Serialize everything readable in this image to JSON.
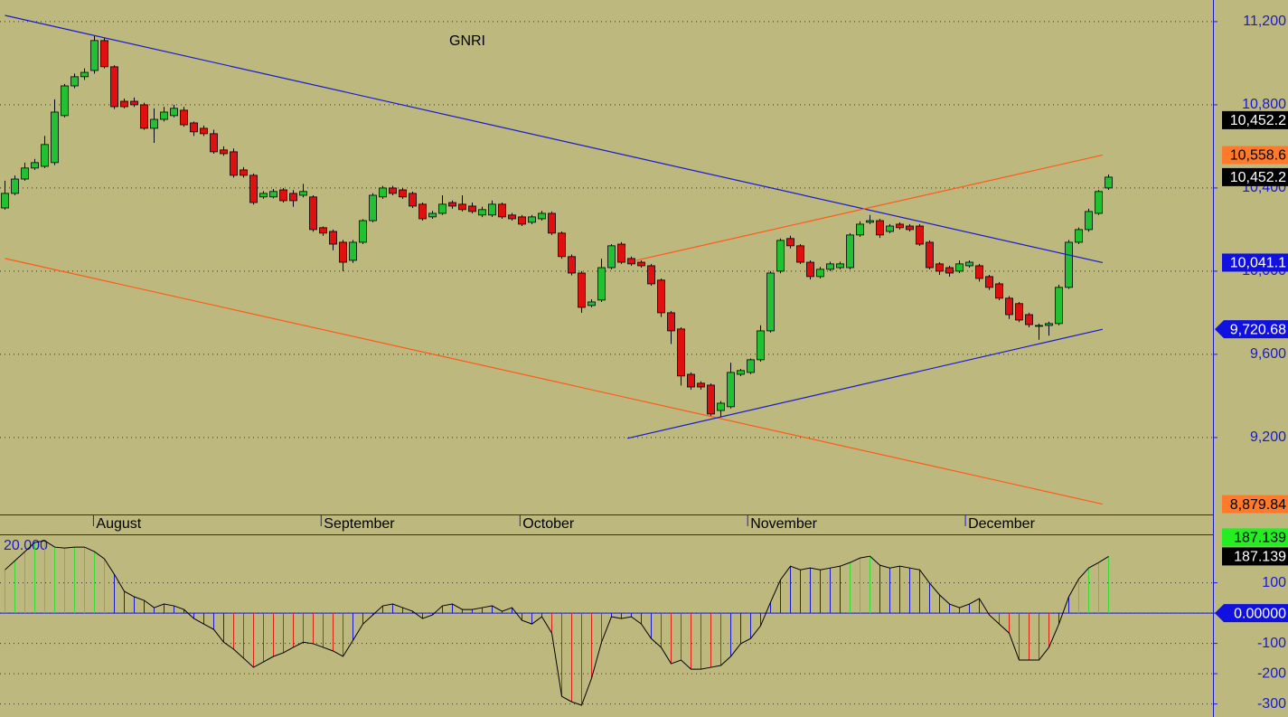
{
  "chart_data": [
    {
      "type": "candlestick",
      "title": "GNRI",
      "up_color": "#22c033",
      "down_color": "#e01010",
      "ohlc": [
        [
          10304,
          10435,
          10296,
          10374
        ],
        [
          10374,
          10460,
          10365,
          10443
        ],
        [
          10443,
          10522,
          10435,
          10496
        ],
        [
          10496,
          10540,
          10487,
          10522
        ],
        [
          10504,
          10650,
          10496,
          10609
        ],
        [
          10522,
          10826,
          10510,
          10765
        ],
        [
          10748,
          10900,
          10740,
          10891
        ],
        [
          10891,
          10950,
          10880,
          10935
        ],
        [
          10935,
          10975,
          10920,
          10956
        ],
        [
          10965,
          11130,
          10950,
          11109
        ],
        [
          11109,
          11120,
          10975,
          10983
        ],
        [
          10983,
          10990,
          10780,
          10791
        ],
        [
          10817,
          10830,
          10783,
          10791
        ],
        [
          10817,
          10835,
          10790,
          10800
        ],
        [
          10800,
          10810,
          10680,
          10687
        ],
        [
          10687,
          10783,
          10617,
          10730
        ],
        [
          10730,
          10790,
          10720,
          10765
        ],
        [
          10748,
          10800,
          10740,
          10783
        ],
        [
          10774,
          10790,
          10695,
          10704
        ],
        [
          10713,
          10720,
          10650,
          10670
        ],
        [
          10687,
          10700,
          10650,
          10661
        ],
        [
          10661,
          10680,
          10565,
          10574
        ],
        [
          10583,
          10600,
          10555,
          10565
        ],
        [
          10574,
          10590,
          10450,
          10461
        ],
        [
          10487,
          10500,
          10450,
          10461
        ],
        [
          10461,
          10470,
          10320,
          10330
        ],
        [
          10357,
          10385,
          10348,
          10374
        ],
        [
          10357,
          10395,
          10350,
          10383
        ],
        [
          10391,
          10400,
          10330,
          10339
        ],
        [
          10374,
          10390,
          10310,
          10339
        ],
        [
          10365,
          10420,
          10355,
          10383
        ],
        [
          10357,
          10365,
          10190,
          10200
        ],
        [
          10209,
          10215,
          10170,
          10183
        ],
        [
          10191,
          10200,
          10100,
          10130
        ],
        [
          10139,
          10150,
          10000,
          10043
        ],
        [
          10052,
          10150,
          10040,
          10139
        ],
        [
          10139,
          10250,
          10130,
          10243
        ],
        [
          10243,
          10375,
          10235,
          10365
        ],
        [
          10357,
          10410,
          10348,
          10400
        ],
        [
          10400,
          10410,
          10365,
          10374
        ],
        [
          10391,
          10400,
          10348,
          10357
        ],
        [
          10374,
          10383,
          10304,
          10313
        ],
        [
          10322,
          10330,
          10243,
          10252
        ],
        [
          10261,
          10290,
          10252,
          10278
        ],
        [
          10278,
          10365,
          10270,
          10322
        ],
        [
          10330,
          10340,
          10300,
          10313
        ],
        [
          10322,
          10365,
          10287,
          10296
        ],
        [
          10313,
          10330,
          10278,
          10287
        ],
        [
          10270,
          10310,
          10260,
          10296
        ],
        [
          10270,
          10340,
          10261,
          10322
        ],
        [
          10322,
          10330,
          10252,
          10261
        ],
        [
          10270,
          10280,
          10243,
          10252
        ],
        [
          10261,
          10270,
          10217,
          10226
        ],
        [
          10235,
          10270,
          10226,
          10261
        ],
        [
          10252,
          10290,
          10243,
          10278
        ],
        [
          10278,
          10287,
          10174,
          10183
        ],
        [
          10183,
          10191,
          10060,
          10070
        ],
        [
          10070,
          10080,
          9980,
          9991
        ],
        [
          9991,
          10000,
          9800,
          9826
        ],
        [
          9835,
          9865,
          9826,
          9852
        ],
        [
          9861,
          10060,
          9852,
          10017
        ],
        [
          10017,
          10130,
          10009,
          10122
        ],
        [
          10130,
          10140,
          10035,
          10043
        ],
        [
          10061,
          10070,
          10026,
          10035
        ],
        [
          10043,
          10052,
          10017,
          10026
        ],
        [
          10026,
          10035,
          9930,
          9939
        ],
        [
          9957,
          9965,
          9780,
          9800
        ],
        [
          9800,
          9809,
          9650,
          9713
        ],
        [
          9722,
          9730,
          9450,
          9496
        ],
        [
          9504,
          9513,
          9430,
          9443
        ],
        [
          9461,
          9470,
          9430,
          9443
        ],
        [
          9452,
          9460,
          9300,
          9313
        ],
        [
          9330,
          9375,
          9300,
          9365
        ],
        [
          9348,
          9560,
          9340,
          9513
        ],
        [
          9504,
          9530,
          9495,
          9522
        ],
        [
          9513,
          9580,
          9505,
          9574
        ],
        [
          9574,
          9740,
          9565,
          9713
        ],
        [
          9713,
          10000,
          9705,
          9991
        ],
        [
          10000,
          10157,
          9990,
          10148
        ],
        [
          10157,
          10170,
          10110,
          10122
        ],
        [
          10122,
          10130,
          10035,
          10043
        ],
        [
          10043,
          10052,
          9960,
          9974
        ],
        [
          9974,
          10020,
          9965,
          10009
        ],
        [
          10009,
          10045,
          10000,
          10035
        ],
        [
          10017,
          10045,
          10009,
          10035
        ],
        [
          10017,
          10183,
          10009,
          10174
        ],
        [
          10174,
          10240,
          10165,
          10226
        ],
        [
          10235,
          10270,
          10226,
          10243
        ],
        [
          10243,
          10252,
          10160,
          10174
        ],
        [
          10191,
          10226,
          10183,
          10217
        ],
        [
          10226,
          10235,
          10200,
          10209
        ],
        [
          10217,
          10226,
          10191,
          10200
        ],
        [
          10217,
          10226,
          10122,
          10130
        ],
        [
          10139,
          10148,
          10009,
          10017
        ],
        [
          10035,
          10043,
          9982,
          10000
        ],
        [
          10017,
          10026,
          9974,
          9991
        ],
        [
          10000,
          10052,
          9991,
          10035
        ],
        [
          10026,
          10052,
          10017,
          10043
        ],
        [
          10026,
          10035,
          9950,
          9965
        ],
        [
          9974,
          9982,
          9910,
          9922
        ],
        [
          9939,
          9948,
          9860,
          9870
        ],
        [
          9870,
          9880,
          9770,
          9791
        ],
        [
          9844,
          9852,
          9755,
          9765
        ],
        [
          9791,
          9800,
          9730,
          9743
        ],
        [
          9735,
          9748,
          9670,
          9739
        ],
        [
          9739,
          9757,
          9690,
          9748
        ],
        [
          9748,
          9935,
          9740,
          9922
        ],
        [
          9922,
          10150,
          9915,
          10139
        ],
        [
          10139,
          10210,
          10130,
          10200
        ],
        [
          10200,
          10300,
          10190,
          10287
        ],
        [
          10278,
          10390,
          10270,
          10383
        ],
        [
          10400,
          10465,
          10391,
          10452.2
        ]
      ],
      "xlim": [
        -0.5,
        121.5
      ],
      "xticks": [
        {
          "value": 8.9,
          "label": "August"
        },
        {
          "value": 31.8,
          "label": "September"
        },
        {
          "value": 51.8,
          "label": "October"
        },
        {
          "value": 74.7,
          "label": "November"
        },
        {
          "value": 96.6,
          "label": "December"
        }
      ],
      "ylim": [
        8830,
        11304
      ],
      "yticks": [
        {
          "value": 11200,
          "label": "11,200"
        },
        {
          "value": 10800,
          "label": "10,800"
        },
        {
          "value": 10400,
          "label": "10,400"
        },
        {
          "value": 10000,
          "label": "10,000"
        },
        {
          "value": 9600,
          "label": "9,600"
        },
        {
          "value": 9200,
          "label": "9,200"
        }
      ],
      "grid": true,
      "trendlines": [
        {
          "color": "#1a1ad0",
          "x": [
            0,
            110.4
          ],
          "values": [
            11230,
            10041.1
          ]
        },
        {
          "color": "#ff5a1a",
          "x": [
            0,
            110.4
          ],
          "values": [
            10061,
            8879.84
          ]
        },
        {
          "color": "#ff5a1a",
          "x": [
            63.5,
            110.4
          ],
          "values": [
            10052,
            10558.6
          ]
        },
        {
          "color": "#1a1ad0",
          "x": [
            62.6,
            110.4
          ],
          "values": [
            9196,
            9720.68
          ]
        }
      ],
      "price_labels": [
        {
          "value": 10558.6,
          "label": "10,558.6",
          "color": "#ff7a2a",
          "text_color": "#000000"
        },
        {
          "value": 10452.2,
          "label": "10,452.2",
          "color": "#000000",
          "text_color": "#ffffff"
        },
        {
          "value": 10452.2,
          "label": "10,452.2",
          "color": "#000000",
          "text_color": "#ffffff"
        },
        {
          "value": 10041.1,
          "label": "10,041.1",
          "color": "#1010e0",
          "text_color": "#ffffff"
        },
        {
          "value": 9720.68,
          "label": "9,720.68",
          "color": "#1010e0",
          "text_color": "#ffffff",
          "shape": "arrow"
        },
        {
          "value": 8879.84,
          "label": "8,879.84",
          "color": "#ff7a2a",
          "text_color": "#000000"
        }
      ]
    },
    {
      "type": "oscillator",
      "label": "20.000",
      "line_color": "#000000",
      "palette": {
        "g": "#33dd33",
        "b": "#1a1ad0",
        "r": "#e02010"
      },
      "color_codes": "gggggggggggbbbbbbbbbbbbrrrrrrrrrrrrbbbbbbbbbbbbbbbbbbbbrrrrrrbbbbbrrrrrrrbbbbbbbbbbbbgggbbbbbbbbbbbrrrrrrrbbgggg",
      "values": [
        143,
        173,
        203,
        233,
        239,
        218,
        215,
        218,
        218,
        203,
        179,
        128,
        72,
        54,
        42,
        18,
        30,
        24,
        12,
        -18,
        -36,
        -54,
        -96,
        -119,
        -149,
        -179,
        -161,
        -143,
        -131,
        -113,
        -96,
        -101,
        -113,
        -125,
        -143,
        -90,
        -36,
        -6,
        24,
        30,
        18,
        6,
        -18,
        -6,
        24,
        30,
        12,
        12,
        18,
        24,
        6,
        18,
        -24,
        -36,
        -12,
        -66,
        -275,
        -293,
        -304,
        -215,
        -96,
        -12,
        -18,
        -12,
        -36,
        -84,
        -113,
        -167,
        -155,
        -185,
        -185,
        -179,
        -173,
        -143,
        -101,
        -84,
        -42,
        36,
        110,
        155,
        143,
        149,
        143,
        149,
        155,
        167,
        182,
        188,
        158,
        149,
        155,
        149,
        143,
        99,
        60,
        30,
        18,
        30,
        48,
        -6,
        -36,
        -66,
        -155,
        -155,
        -155,
        -113,
        -36,
        54,
        113,
        149,
        167,
        187.139
      ],
      "ylim": [
        -343,
        257
      ],
      "yticks": [
        100,
        0,
        -100,
        -200,
        -300
      ],
      "grid": true,
      "price_labels": [
        {
          "value": 187.139,
          "label": "187.139",
          "color": "#000000",
          "text_color": "#ffffff"
        },
        {
          "value": 187.139,
          "label": "187.139",
          "color": "#22ee22",
          "text_color": "#000000"
        },
        {
          "value": 0,
          "label": "0.00000",
          "color": "#1010e0",
          "text_color": "#ffffff",
          "shape": "arrow"
        }
      ]
    }
  ]
}
